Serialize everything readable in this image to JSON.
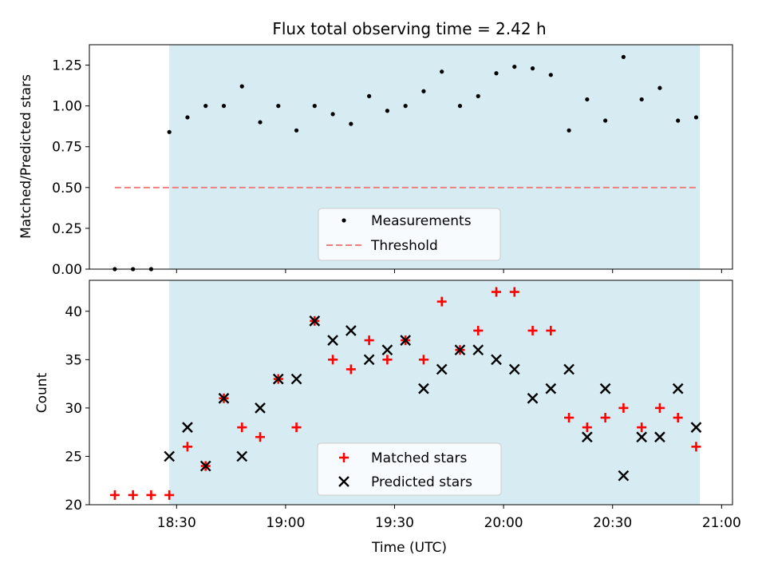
{
  "chart_data": [
    {
      "type": "scatter",
      "title": "Flux total observing time = 2.42 h",
      "xlabel": "",
      "ylabel": "Matched/Predicted stars",
      "ylim": [
        0,
        1.375
      ],
      "yticks": [
        "0.00",
        "0.25",
        "0.50",
        "0.75",
        "1.00",
        "1.25"
      ],
      "ytick_values": [
        0,
        0.25,
        0.5,
        0.75,
        1.0,
        1.25
      ],
      "shaded_region": [
        "18:28",
        "20:54"
      ],
      "shade_color": "#add8e6",
      "legend": {
        "placement": "lower center",
        "entries": [
          "Measurements",
          "Threshold"
        ]
      },
      "series": [
        {
          "name": "Measurements",
          "marker": "dot",
          "color": "#000000",
          "x": [
            "18:13",
            "18:18",
            "18:23",
            "18:28",
            "18:33",
            "18:38",
            "18:43",
            "18:48",
            "18:53",
            "18:58",
            "19:03",
            "19:08",
            "19:13",
            "19:18",
            "19:23",
            "19:28",
            "19:33",
            "19:38",
            "19:43",
            "19:48",
            "19:53",
            "19:58",
            "20:03",
            "20:08",
            "20:13",
            "20:18",
            "20:23",
            "20:28",
            "20:33",
            "20:38",
            "20:43",
            "20:48",
            "20:53"
          ],
          "y": [
            0,
            0,
            0,
            0.84,
            0.93,
            1.0,
            1.0,
            1.12,
            0.9,
            1.0,
            0.85,
            1.0,
            0.95,
            0.89,
            1.06,
            0.97,
            1.0,
            1.09,
            1.21,
            1.0,
            1.06,
            1.2,
            1.24,
            1.23,
            1.19,
            0.85,
            1.04,
            0.91,
            1.3,
            1.04,
            1.11,
            0.91,
            0.93
          ]
        },
        {
          "name": "Threshold",
          "marker": "dashed-line",
          "color": "#f08080",
          "x": [
            "18:13",
            "20:53"
          ],
          "y": [
            0.5,
            0.5
          ]
        }
      ]
    },
    {
      "type": "scatter",
      "title": "",
      "xlabel": "Time (UTC)",
      "ylabel": "Count",
      "ylim": [
        20,
        43.2
      ],
      "yticks": [
        "20",
        "25",
        "30",
        "35",
        "40"
      ],
      "ytick_values": [
        20,
        25,
        30,
        35,
        40
      ],
      "xticks": [
        "18:30",
        "19:00",
        "19:30",
        "20:00",
        "20:30",
        "21:00"
      ],
      "xtick_values": [
        "18:30",
        "19:00",
        "19:30",
        "20:00",
        "20:30",
        "21:00"
      ],
      "xlim": [
        "18:06",
        "21:03"
      ],
      "shaded_region": [
        "18:28",
        "20:54"
      ],
      "shade_color": "#add8e6",
      "legend": {
        "placement": "lower center",
        "entries": [
          "Matched stars",
          "Predicted stars"
        ]
      },
      "series": [
        {
          "name": "Matched stars",
          "marker": "plus",
          "color": "#ff0000",
          "x": [
            "18:13",
            "18:18",
            "18:23",
            "18:28",
            "18:33",
            "18:38",
            "18:43",
            "18:48",
            "18:53",
            "18:58",
            "19:03",
            "19:08",
            "19:13",
            "19:18",
            "19:23",
            "19:28",
            "19:33",
            "19:38",
            "19:43",
            "19:48",
            "19:53",
            "19:58",
            "20:03",
            "20:08",
            "20:13",
            "20:18",
            "20:23",
            "20:28",
            "20:33",
            "20:38",
            "20:43",
            "20:48",
            "20:53"
          ],
          "y": [
            21,
            21,
            21,
            21,
            26,
            24,
            31,
            28,
            27,
            33,
            28,
            39,
            35,
            34,
            37,
            35,
            37,
            35,
            41,
            36,
            38,
            42,
            42,
            38,
            38,
            29,
            28,
            29,
            30,
            28,
            30,
            29,
            26
          ]
        },
        {
          "name": "Predicted stars",
          "marker": "x",
          "color": "#000000",
          "x": [
            "18:28",
            "18:33",
            "18:38",
            "18:43",
            "18:48",
            "18:53",
            "18:58",
            "19:03",
            "19:08",
            "19:13",
            "19:18",
            "19:23",
            "19:28",
            "19:33",
            "19:38",
            "19:43",
            "19:48",
            "19:53",
            "19:58",
            "20:03",
            "20:08",
            "20:13",
            "20:18",
            "20:23",
            "20:28",
            "20:33",
            "20:38",
            "20:43",
            "20:48",
            "20:53"
          ],
          "y": [
            25,
            28,
            24,
            31,
            25,
            30,
            33,
            33,
            39,
            37,
            38,
            35,
            36,
            37,
            32,
            34,
            36,
            36,
            35,
            34,
            31,
            32,
            34,
            27,
            32,
            23,
            27,
            27,
            32,
            28
          ]
        }
      ]
    }
  ]
}
